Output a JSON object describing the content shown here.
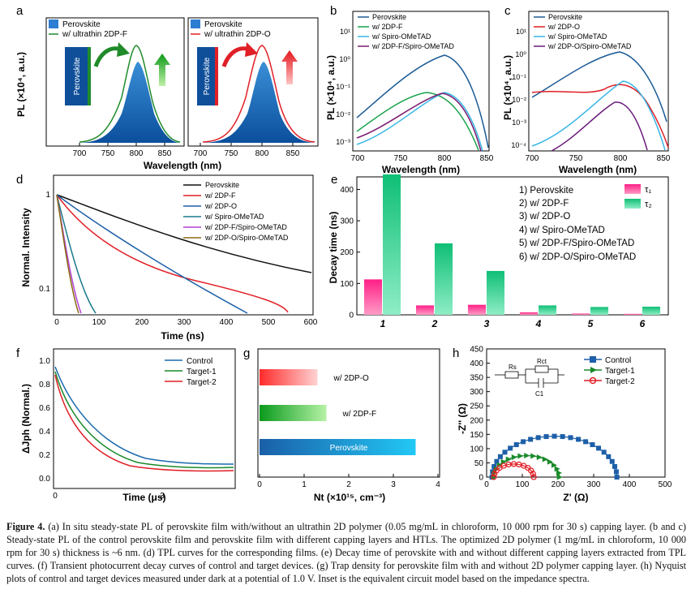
{
  "panels": {
    "a": {
      "label": "a",
      "xlabel": "Wavelength (nm)",
      "ylabel": "PL (×10⁴, a.u.)",
      "ticks": [
        "700",
        "750",
        "800",
        "850"
      ],
      "left": {
        "legend": [
          "Perovskite",
          "w/ ultrathin 2DP-F"
        ],
        "inset_label": "Perovskite",
        "accent": "#1f8b2a"
      },
      "right": {
        "legend": [
          "Perovskite",
          "w/ ultrathin 2DP-O"
        ],
        "inset_label": "Perovskite",
        "accent": "#e01f26"
      }
    },
    "b": {
      "label": "b",
      "xlabel": "Wavelength (nm)",
      "ylabel": "PL (×10⁴, a.u.)",
      "xticks": [
        "700",
        "750",
        "800",
        "850"
      ],
      "yticks": [
        "10¹",
        "10⁰",
        "10⁻¹",
        "10⁻²",
        "10⁻³"
      ],
      "legend": [
        "Perovskite",
        "w/ 2DP-F",
        "w/ Spiro-OMeTAD",
        "w/ 2DP-F/Spiro-OMeTAD"
      ]
    },
    "c": {
      "label": "c",
      "xlabel": "Wavelength (nm)",
      "ylabel": "PL (×10⁴, a.u.)",
      "xticks": [
        "700",
        "750",
        "800",
        "850"
      ],
      "yticks": [
        "10¹",
        "10⁰",
        "10⁻¹",
        "10⁻²",
        "10⁻³",
        "10⁻⁴"
      ],
      "legend": [
        "Perovskite",
        "w/ 2DP-O",
        "w/ Spiro-OMeTAD",
        "w/ 2DP-O/Spiro-OMeTAD"
      ]
    },
    "d": {
      "label": "d",
      "xlabel": "Time (ns)",
      "ylabel": "Normal. Intensity",
      "xticks": [
        "0",
        "100",
        "200",
        "300",
        "400",
        "500",
        "600"
      ],
      "yticks": [
        "1",
        "0.1"
      ],
      "legend": [
        "Perovskite",
        "w/ 2DP-F",
        "w/ 2DP-O",
        "w/ Spiro-OMeTAD",
        "w/ 2DP-F/Spiro-OMeTAD",
        "w/ 2DP-O/Spiro-OMeTAD"
      ]
    },
    "e": {
      "label": "e",
      "ylabel": "Decay time (ns)",
      "legend_list": [
        "1)  Perovskite",
        "2)  w/ 2DP-F",
        "3)  w/ 2DP-O",
        "4)  w/ Spiro-OMeTAD",
        "5)  w/ 2DP-F/Spiro-OMeTAD",
        "6)  w/ 2DP-O/Spiro-OMeTAD"
      ],
      "tau1": "τ₁",
      "tau2": "τ₂"
    },
    "f": {
      "label": "f",
      "xlabel": "Time (μs)",
      "ylabel": "ΔJph (Normal.)",
      "xticks": [
        "0",
        "3"
      ],
      "yticks": [
        "1.0",
        "0.8",
        "0.6",
        "0.4",
        "0.2",
        "0.0"
      ],
      "legend": [
        "Control",
        "Target-1",
        "Target-2"
      ]
    },
    "g": {
      "label": "g",
      "xlabel": "Nt (×10¹⁵, cm⁻³)",
      "xticks": [
        "0",
        "1",
        "2",
        "3",
        "4"
      ]
    },
    "h": {
      "label": "h",
      "xlabel": "Z' (Ω)",
      "ylabel": "-Z'' (Ω)",
      "xticks": [
        "0",
        "100",
        "200",
        "300",
        "400",
        "500"
      ],
      "yticks": [
        "0",
        "50",
        "100",
        "150",
        "200",
        "250",
        "300",
        "350",
        "400",
        "450"
      ],
      "legend": [
        "Control",
        "Target-1",
        "Target-2"
      ],
      "inset": {
        "rs": "Rs",
        "rct": "Rct",
        "c": "C1"
      }
    }
  },
  "chart_data": [
    {
      "panel": "e",
      "type": "bar",
      "categories": [
        "1",
        "2",
        "3",
        "4",
        "5",
        "6"
      ],
      "ylim": [
        0,
        440
      ],
      "yticks": [
        0,
        100,
        200,
        300,
        400
      ],
      "series": [
        {
          "name": "τ₁",
          "values": [
            113,
            30,
            32,
            8,
            4,
            3
          ],
          "color": "#e8377e"
        },
        {
          "name": "τ₂",
          "values": [
            448,
            228,
            140,
            30,
            25,
            26
          ],
          "color": "#2fcf8c"
        }
      ]
    },
    {
      "panel": "g",
      "type": "bar",
      "orientation": "horizontal",
      "categories": [
        "w/ 2DP-O",
        "w/ 2DP-F",
        "Perovskite"
      ],
      "values": [
        1.3,
        1.5,
        3.5
      ],
      "xlim": [
        0,
        4
      ]
    },
    {
      "panel": "h",
      "type": "scatter",
      "xlim": [
        0,
        500
      ],
      "ylim": [
        0,
        450
      ],
      "series": [
        {
          "name": "Control",
          "center": 190,
          "radius": 175,
          "start": 18
        },
        {
          "name": "Target-1",
          "center": 112,
          "radius": 92,
          "start": 18
        },
        {
          "name": "Target-2",
          "center": 76,
          "radius": 56,
          "start": 18
        }
      ]
    }
  ],
  "caption": {
    "lead": "Figure 4.",
    "text": " (a) In situ steady-state PL of perovskite film with/without an ultrathin 2D polymer (0.05 mg/mL in chloroform, 10 000 rpm for 30 s) capping layer. (b and c) Steady-state PL of the control perovskite film and perovskite film with different capping layers and HTLs. The optimized 2D polymer (1 mg/mL in chloroform, 10 000 rpm for 30 s) thickness is ~6 nm. (d) TPL curves for the corresponding films. (e) Decay time of perovskite with and without different capping layers extracted from TPL curves. (f) Transient photocurrent decay curves of control and target devices. (g) Trap density for perovskite film with and without 2D polymer capping layer. (h) Nyquist plots of control and target devices measured under dark at a potential of 1.0 V. Inset is the equivalent circuit model based on the impedance spectra."
  }
}
